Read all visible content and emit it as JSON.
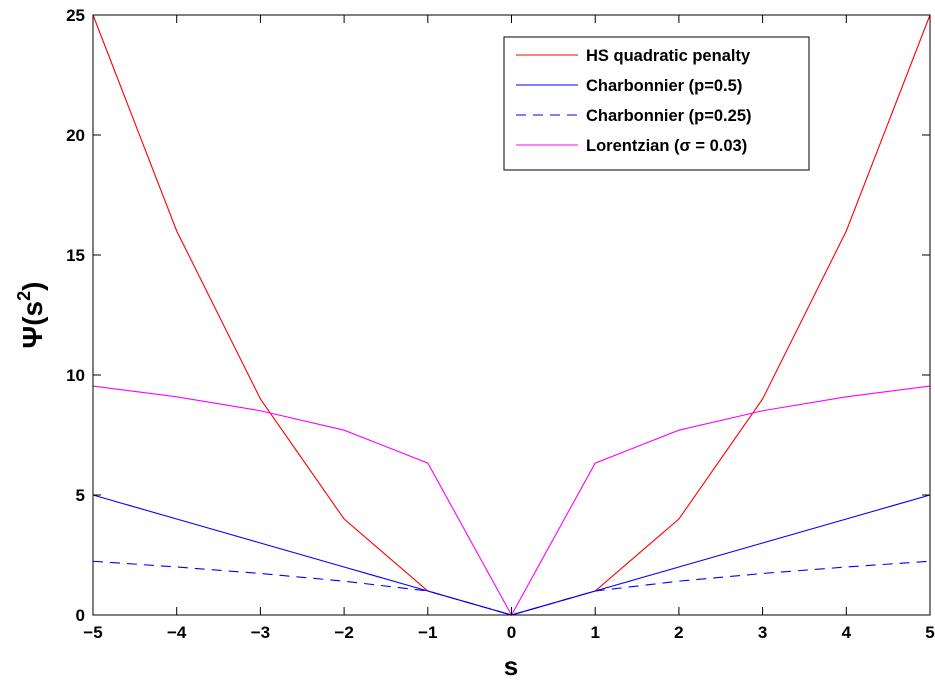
{
  "chart_data": {
    "type": "line",
    "title": "",
    "xlabel": "s",
    "ylabel": {
      "prefix": "Ψ(s",
      "superscript": "2",
      "suffix": ")"
    },
    "xlim": [
      -5,
      5
    ],
    "ylim": [
      0,
      25
    ],
    "xticks": [
      "−5",
      "−4",
      "−3",
      "−2",
      "−1",
      "0",
      "1",
      "2",
      "3",
      "4",
      "5"
    ],
    "yticks": [
      "0",
      "5",
      "10",
      "15",
      "20",
      "25"
    ],
    "grid": false,
    "legend_position": "top-right",
    "x": [
      -5,
      -4,
      -3,
      -2,
      -1,
      0,
      1,
      2,
      3,
      4,
      5
    ],
    "series": [
      {
        "name": "HS quadratic penalty",
        "color": "#ff0000",
        "dash": "solid",
        "values": [
          25,
          16,
          9,
          4,
          1,
          0,
          1,
          4,
          9,
          16,
          25
        ]
      },
      {
        "name": "Charbonnier (p=0.5)",
        "color": "#0000ff",
        "dash": "solid",
        "values": [
          5,
          4,
          3,
          2,
          1,
          0,
          1,
          2,
          3,
          4,
          5
        ]
      },
      {
        "name": "Charbonnier (p=0.25)",
        "color": "#0000ff",
        "dash": "dashed",
        "values": [
          2.24,
          2.0,
          1.73,
          1.41,
          1.0,
          0,
          1.0,
          1.41,
          1.73,
          2.0,
          2.24
        ]
      },
      {
        "name": "Lorentzian (σ = 0.03)",
        "color": "#ff00ff",
        "dash": "solid",
        "values": [
          9.54,
          9.09,
          8.51,
          7.7,
          6.33,
          0,
          6.33,
          7.7,
          8.51,
          9.09,
          9.54
        ]
      }
    ]
  }
}
